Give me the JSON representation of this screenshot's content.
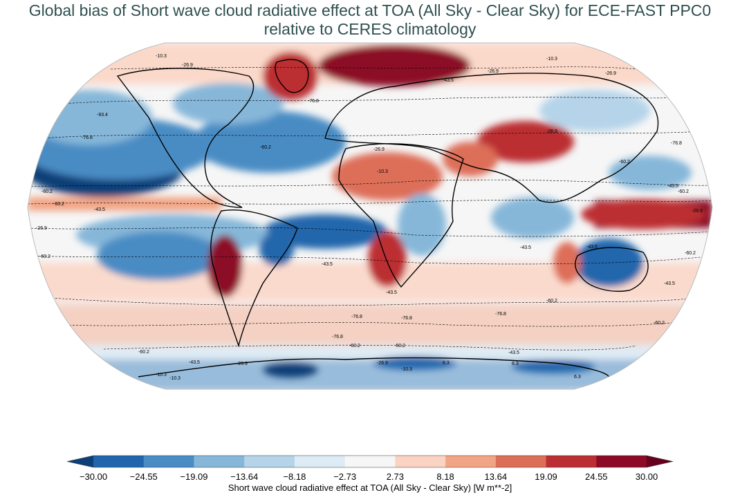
{
  "title": {
    "line1": "Global bias of Short wave cloud radiative effect at TOA (All Sky - Clear Sky) for ECE-FAST PPC0",
    "line2": "relative to CERES climatology"
  },
  "colorbar": {
    "label": "Short wave cloud radiative effect at TOA (All Sky - Clear Sky) [W m**-2]",
    "ticks": [
      "−30.00",
      "−24.55",
      "−19.09",
      "−13.64",
      "−8.18",
      "−2.73",
      "2.73",
      "8.18",
      "13.64",
      "19.09",
      "24.55",
      "30.00"
    ],
    "colors": [
      "#0d3f78",
      "#2166ac",
      "#4a8cc4",
      "#86b7d9",
      "#b5d4e9",
      "#ddebf4",
      "#f6f6f6",
      "#fbd3c2",
      "#f2a585",
      "#dd6e58",
      "#bb2f33",
      "#8c0a26",
      "#67001f"
    ],
    "extend": "both"
  },
  "contour_labels": [
    "-10.3",
    "-26.9",
    "-43.5",
    "-60.2",
    "-76.8",
    "-93.4",
    "6.3"
  ],
  "map": {
    "projection": "Robinson",
    "coastlines": true,
    "contour_style": "dashed"
  }
}
